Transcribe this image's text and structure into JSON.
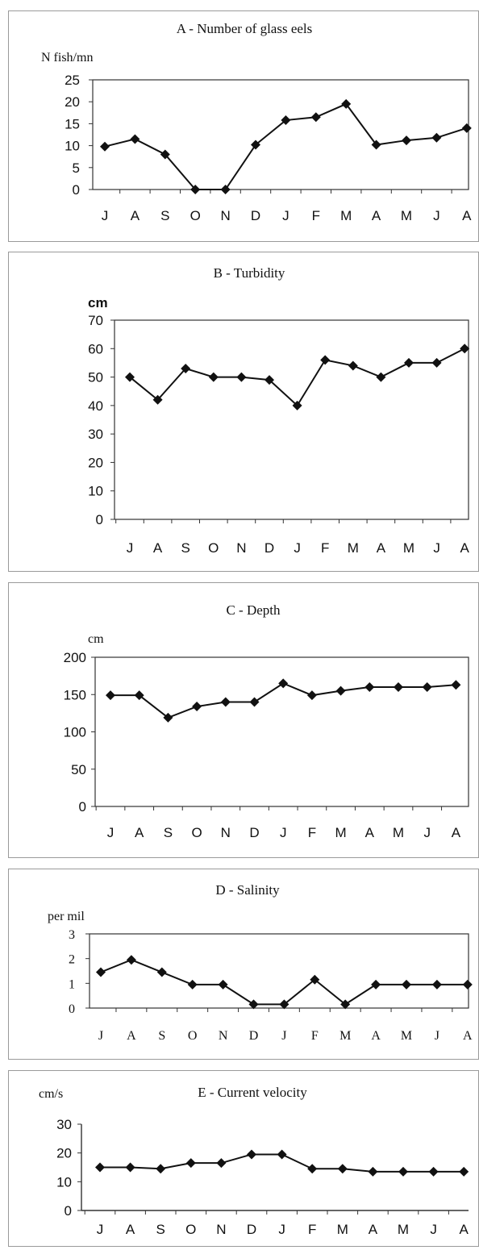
{
  "chart_data": [
    {
      "type": "line",
      "title": "A  - Number of glass eels",
      "ylabel": "N fish/mn",
      "categories": [
        "J",
        "A",
        "S",
        "O",
        "N",
        "D",
        "J",
        "F",
        "M",
        "A",
        "M",
        "J",
        "A"
      ],
      "yticks": [
        0,
        5,
        10,
        15,
        20,
        25
      ],
      "ylim": [
        0,
        25
      ],
      "values": [
        9.8,
        11.5,
        8,
        0,
        0,
        10.2,
        15.8,
        16.5,
        19.5,
        10.2,
        11.2,
        11.8,
        14
      ],
      "grid": false,
      "frame": true
    },
    {
      "type": "line",
      "title": "B - Turbidity",
      "ylabel": "cm",
      "categories": [
        "J",
        "A",
        "S",
        "O",
        "N",
        "D",
        "J",
        "F",
        "M",
        "A",
        "M",
        "J",
        "A"
      ],
      "yticks": [
        0,
        10,
        20,
        30,
        40,
        50,
        60,
        70
      ],
      "ylim": [
        0,
        70
      ],
      "values": [
        50,
        42,
        53,
        50,
        50,
        49,
        40,
        56,
        54,
        50,
        55,
        55,
        60
      ],
      "grid": false,
      "frame": true
    },
    {
      "type": "line",
      "title": "C - Depth",
      "ylabel": "cm",
      "categories": [
        "J",
        "A",
        "S",
        "O",
        "N",
        "D",
        "J",
        "F",
        "M",
        "A",
        "M",
        "J",
        "A"
      ],
      "yticks": [
        0,
        50,
        100,
        150,
        200
      ],
      "ylim": [
        0,
        200
      ],
      "values": [
        149,
        149,
        119,
        134,
        140,
        140,
        165,
        149,
        155,
        160,
        160,
        160,
        163
      ],
      "grid": false,
      "frame": true
    },
    {
      "type": "line",
      "title": "D - Salinity",
      "ylabel": "per mil",
      "categories": [
        "J",
        "A",
        "S",
        "O",
        "N",
        "D",
        "J",
        "F",
        "M",
        "A",
        "M",
        "J",
        "A"
      ],
      "yticks": [
        0,
        1,
        2,
        3
      ],
      "ylim": [
        0,
        3
      ],
      "values": [
        1.45,
        1.95,
        1.45,
        0.95,
        0.95,
        0.15,
        0.15,
        1.15,
        0.15,
        0.95,
        0.95,
        0.95,
        0.95
      ],
      "grid": false,
      "frame": true
    },
    {
      "type": "line",
      "title": "E - Current velocity",
      "ylabel": "cm/s",
      "categories": [
        "J",
        "A",
        "S",
        "O",
        "N",
        "D",
        "J",
        "F",
        "M",
        "A",
        "M",
        "J",
        "A"
      ],
      "yticks": [
        0,
        10,
        20,
        30
      ],
      "ylim": [
        0,
        30
      ],
      "values": [
        15,
        15,
        14.5,
        16.5,
        16.5,
        19.5,
        19.5,
        14.5,
        14.5,
        13.5,
        13.5,
        13.5,
        13.5
      ],
      "grid": false,
      "frame": false
    }
  ],
  "style": {
    "line_color": "#111111",
    "marker": "diamond",
    "panel_border_color": "#9a9a9a"
  }
}
